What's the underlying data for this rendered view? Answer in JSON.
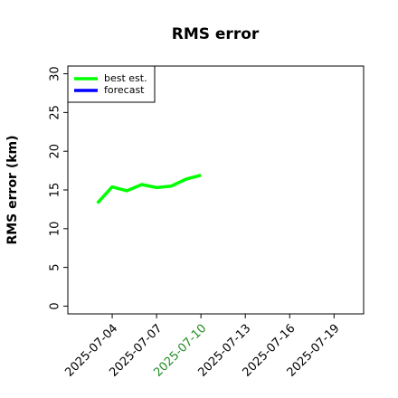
{
  "chart_data": {
    "type": "line",
    "title": "RMS error",
    "y_label": "RMS error (km)",
    "x": [
      "2025-07-03",
      "2025-07-04",
      "2025-07-05",
      "2025-07-06",
      "2025-07-07",
      "2025-07-08",
      "2025-07-09",
      "2025-07-10"
    ],
    "series": [
      {
        "name": "best est.",
        "color": "#00ff00",
        "values": [
          13.3,
          15.4,
          14.9,
          15.7,
          15.3,
          15.5,
          16.4,
          16.9
        ]
      },
      {
        "name": "forecast",
        "color": "#0000ff",
        "values": [
          null,
          null,
          null,
          null,
          null,
          null,
          null,
          null
        ]
      }
    ],
    "xlim": [
      "2025-07-01",
      "2025-07-21"
    ],
    "xticks": [
      "2025-07-04",
      "2025-07-07",
      "2025-07-10",
      "2025-07-13",
      "2025-07-16",
      "2025-07-19"
    ],
    "ylim": [
      -1,
      31
    ],
    "yticks": [
      0,
      5,
      10,
      15,
      20,
      25,
      30
    ],
    "legend": "upper left",
    "grid": false,
    "highlighted_xtick": "2025-07-10",
    "highlight_color": "#228b22"
  }
}
